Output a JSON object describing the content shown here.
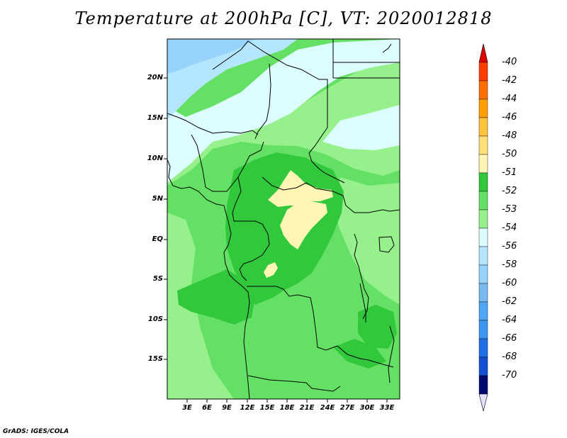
{
  "title": "Temperature at 200hPa [C], VT: 2020012818",
  "credit": "GrADS: IGES/COLA",
  "lat_labels": [
    "20N",
    "15N",
    "10N",
    "5N",
    "EQ",
    "5S",
    "10S",
    "15S"
  ],
  "lon_labels": [
    "3E",
    "6E",
    "9E",
    "12E",
    "15E",
    "18E",
    "21E",
    "24E",
    "27E",
    "30E",
    "33E"
  ],
  "legend": {
    "labels": [
      "-40",
      "-42",
      "-44",
      "-46",
      "-48",
      "-50",
      "-51",
      "-52",
      "-53",
      "-54",
      "-56",
      "-58",
      "-60",
      "-62",
      "-64",
      "-66",
      "-68",
      "-70"
    ],
    "colors": [
      "#e00000",
      "#ff3c00",
      "#ff6e00",
      "#ffa000",
      "#ffc43c",
      "#ffe078",
      "#fff5b4",
      "#32c83c",
      "#64e164",
      "#96f08c",
      "#ddfcff",
      "#b4e6ff",
      "#96d2fa",
      "#78b9f0",
      "#50a5f5",
      "#3c96f0",
      "#1e6ee6",
      "#1450d2",
      "#000a6e",
      "#e1e1ff"
    ]
  },
  "map": {
    "field_colors": {
      "warm_patch": "#fff5b4",
      "band_52": "#32c83c",
      "band_53": "#64e164",
      "band_54": "#96f08c",
      "band_56": "#ddfcff",
      "band_58": "#b4e6ff",
      "band_60": "#96d2fa"
    }
  }
}
